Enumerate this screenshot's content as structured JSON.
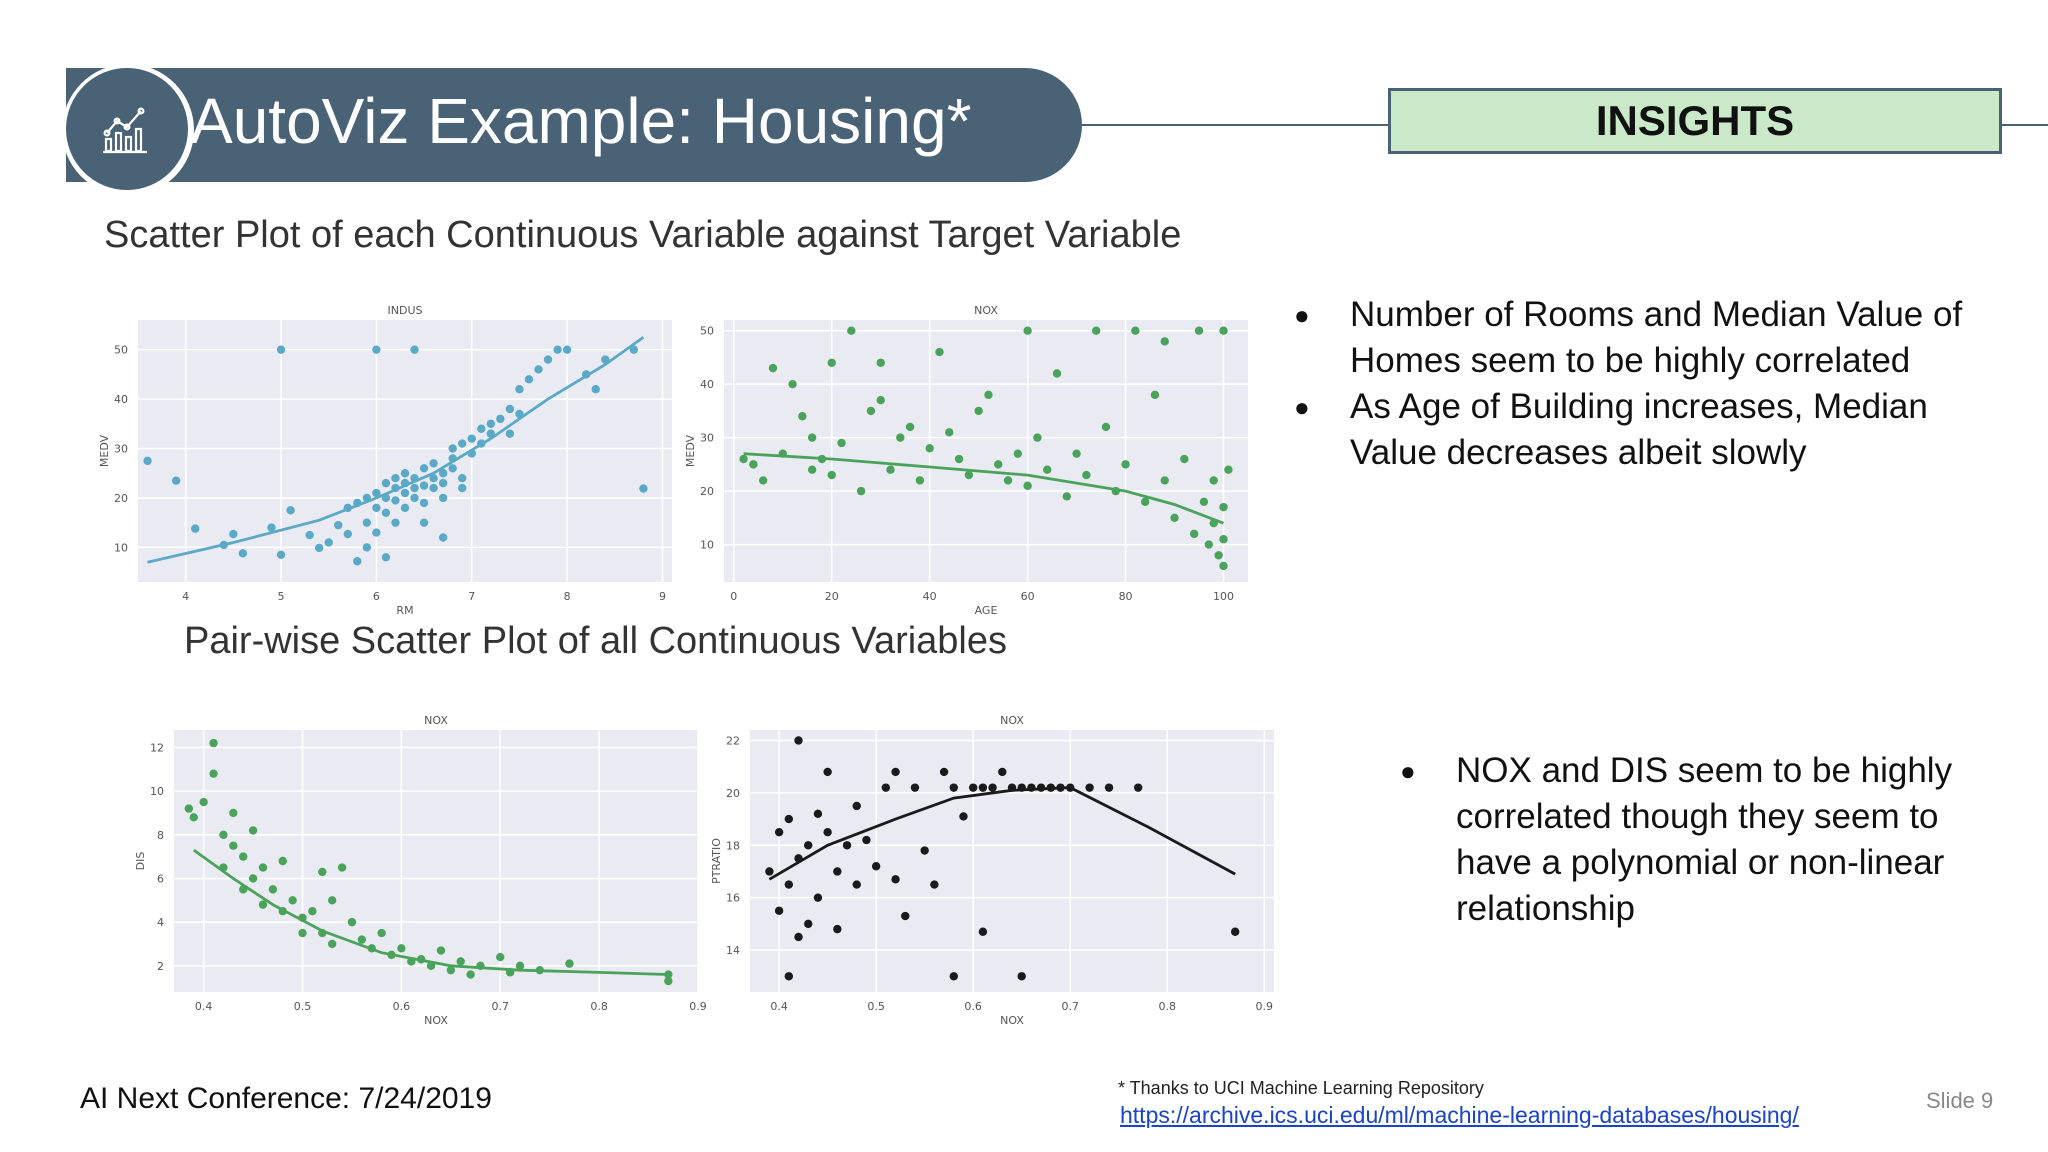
{
  "header": {
    "title": "AutoViz Example: Housing*",
    "insights_label": "INSIGHTS"
  },
  "sections": {
    "scatter_title": "Scatter Plot of each Continuous Variable against Target Variable",
    "pairwise_title": "Pair-wise Scatter Plot of all Continuous Variables"
  },
  "insights": {
    "top": [
      "Number of Rooms and Median Value of Homes seem to be highly correlated",
      "As Age of Building increases, Median Value decreases albeit slowly"
    ],
    "bottom": [
      "NOX and DIS seem to be highly correlated though they seem to have a polynomial or non-linear relationship"
    ]
  },
  "footer": {
    "conference": "AI Next Conference: 7/24/2019",
    "footnote": "*    Thanks to UCI Machine Learning Repository",
    "link": "https://archive.ics.uci.edu/ml/machine-learning-databases/housing/",
    "slide": "Slide 9"
  },
  "chart_data": [
    {
      "type": "scatter",
      "title": "INDUS",
      "xlabel": "RM",
      "ylabel": "MEDV",
      "xlim": [
        3.5,
        9.1
      ],
      "ylim": [
        3,
        56
      ],
      "xticks": [
        4,
        5,
        6,
        7,
        8,
        9
      ],
      "yticks": [
        10,
        20,
        30,
        40,
        50
      ],
      "grid": true,
      "color": "#5aa9c6",
      "points": [
        [
          3.6,
          27.5
        ],
        [
          3.9,
          23.5
        ],
        [
          4.1,
          13.8
        ],
        [
          4.4,
          10.5
        ],
        [
          4.5,
          12.7
        ],
        [
          4.6,
          8.8
        ],
        [
          4.9,
          14.0
        ],
        [
          5.0,
          50
        ],
        [
          5.0,
          8.5
        ],
        [
          5.1,
          17.5
        ],
        [
          5.3,
          12.5
        ],
        [
          5.4,
          9.9
        ],
        [
          5.5,
          11.0
        ],
        [
          5.6,
          14.5
        ],
        [
          5.7,
          18.0
        ],
        [
          5.7,
          12.7
        ],
        [
          5.8,
          7.2
        ],
        [
          5.8,
          19.0
        ],
        [
          5.9,
          20.0
        ],
        [
          5.9,
          15.0
        ],
        [
          5.9,
          10.0
        ],
        [
          6.0,
          21.0
        ],
        [
          6.0,
          18.0
        ],
        [
          6.0,
          13.0
        ],
        [
          6.0,
          50
        ],
        [
          6.1,
          23.0
        ],
        [
          6.1,
          20.0
        ],
        [
          6.1,
          17.0
        ],
        [
          6.1,
          8.0
        ],
        [
          6.2,
          22.0
        ],
        [
          6.2,
          19.5
        ],
        [
          6.2,
          15.0
        ],
        [
          6.2,
          24.0
        ],
        [
          6.3,
          23.0
        ],
        [
          6.3,
          21.0
        ],
        [
          6.3,
          18.0
        ],
        [
          6.3,
          25.0
        ],
        [
          6.4,
          24.0
        ],
        [
          6.4,
          22.0
        ],
        [
          6.4,
          20.0
        ],
        [
          6.4,
          50
        ],
        [
          6.5,
          22.5
        ],
        [
          6.5,
          26.0
        ],
        [
          6.5,
          19.0
        ],
        [
          6.5,
          15.0
        ],
        [
          6.6,
          24.0
        ],
        [
          6.6,
          22.0
        ],
        [
          6.6,
          27.0
        ],
        [
          6.7,
          25.0
        ],
        [
          6.7,
          23.0
        ],
        [
          6.7,
          20.0
        ],
        [
          6.7,
          12.0
        ],
        [
          6.8,
          28.0
        ],
        [
          6.8,
          30.0
        ],
        [
          6.8,
          26.0
        ],
        [
          6.9,
          31.0
        ],
        [
          6.9,
          24.0
        ],
        [
          6.9,
          22.0
        ],
        [
          7.0,
          32.0
        ],
        [
          7.0,
          29.0
        ],
        [
          7.1,
          34.0
        ],
        [
          7.1,
          31.0
        ],
        [
          7.2,
          33.0
        ],
        [
          7.2,
          35.0
        ],
        [
          7.3,
          36.0
        ],
        [
          7.4,
          38.0
        ],
        [
          7.4,
          33.0
        ],
        [
          7.5,
          42.0
        ],
        [
          7.5,
          37.0
        ],
        [
          7.6,
          44.0
        ],
        [
          7.7,
          46.0
        ],
        [
          7.8,
          48.0
        ],
        [
          7.9,
          50
        ],
        [
          8.0,
          50
        ],
        [
          8.2,
          45.0
        ],
        [
          8.3,
          42.0
        ],
        [
          8.4,
          48.0
        ],
        [
          8.7,
          50
        ],
        [
          8.8,
          21.9
        ]
      ],
      "trend": [
        [
          3.6,
          7.0
        ],
        [
          4.5,
          11.0
        ],
        [
          5.4,
          15.5
        ],
        [
          6.0,
          20.0
        ],
        [
          6.6,
          25.0
        ],
        [
          7.2,
          32.0
        ],
        [
          7.8,
          40.0
        ],
        [
          8.4,
          47.0
        ],
        [
          8.8,
          52.5
        ]
      ]
    },
    {
      "type": "scatter",
      "title": "NOX",
      "xlabel": "AGE",
      "ylabel": "MEDV",
      "xlim": [
        -2,
        105
      ],
      "ylim": [
        3,
        52
      ],
      "xticks": [
        0,
        20,
        40,
        60,
        80,
        100
      ],
      "yticks": [
        10,
        20,
        30,
        40,
        50
      ],
      "grid": true,
      "color": "#4aa35a",
      "points": [
        [
          2,
          26
        ],
        [
          4,
          25
        ],
        [
          6,
          22
        ],
        [
          8,
          43
        ],
        [
          10,
          27
        ],
        [
          12,
          40
        ],
        [
          14,
          34
        ],
        [
          16,
          30
        ],
        [
          16,
          24
        ],
        [
          18,
          26
        ],
        [
          20,
          44
        ],
        [
          20,
          23
        ],
        [
          22,
          29
        ],
        [
          24,
          50
        ],
        [
          26,
          20
        ],
        [
          28,
          35
        ],
        [
          30,
          37
        ],
        [
          30,
          44
        ],
        [
          32,
          24
        ],
        [
          34,
          30
        ],
        [
          36,
          32
        ],
        [
          38,
          22
        ],
        [
          40,
          28
        ],
        [
          42,
          46
        ],
        [
          44,
          31
        ],
        [
          46,
          26
        ],
        [
          48,
          23
        ],
        [
          50,
          35
        ],
        [
          52,
          38
        ],
        [
          54,
          25
        ],
        [
          56,
          22
        ],
        [
          58,
          27
        ],
        [
          60,
          21
        ],
        [
          60,
          50
        ],
        [
          62,
          30
        ],
        [
          64,
          24
        ],
        [
          66,
          42
        ],
        [
          68,
          19
        ],
        [
          70,
          27
        ],
        [
          72,
          23
        ],
        [
          74,
          50
        ],
        [
          76,
          32
        ],
        [
          78,
          20
        ],
        [
          80,
          25
        ],
        [
          82,
          50
        ],
        [
          84,
          18
        ],
        [
          86,
          38
        ],
        [
          88,
          22
        ],
        [
          88,
          48
        ],
        [
          90,
          15
        ],
        [
          92,
          26
        ],
        [
          94,
          12
        ],
        [
          95,
          50
        ],
        [
          96,
          18
        ],
        [
          97,
          10
        ],
        [
          98,
          22
        ],
        [
          98,
          14
        ],
        [
          99,
          8
        ],
        [
          100,
          17
        ],
        [
          100,
          11
        ],
        [
          100,
          50
        ],
        [
          100,
          6
        ],
        [
          101,
          24
        ]
      ],
      "trend": [
        [
          2,
          27
        ],
        [
          20,
          26
        ],
        [
          40,
          24.5
        ],
        [
          60,
          23
        ],
        [
          80,
          20
        ],
        [
          90,
          17.5
        ],
        [
          100,
          14
        ]
      ]
    },
    {
      "type": "scatter",
      "title": "NOX",
      "xlabel": "NOX",
      "ylabel": "DIS",
      "xlim": [
        0.37,
        0.9
      ],
      "ylim": [
        0.8,
        12.8
      ],
      "xticks": [
        0.4,
        0.5,
        0.6,
        0.7,
        0.8,
        0.9
      ],
      "yticks": [
        2,
        4,
        6,
        8,
        10,
        12
      ],
      "grid": true,
      "color": "#4aa35a",
      "points": [
        [
          0.385,
          9.2
        ],
        [
          0.39,
          8.8
        ],
        [
          0.4,
          9.5
        ],
        [
          0.41,
          12.2
        ],
        [
          0.41,
          10.8
        ],
        [
          0.42,
          8.0
        ],
        [
          0.42,
          6.5
        ],
        [
          0.43,
          7.5
        ],
        [
          0.43,
          9.0
        ],
        [
          0.44,
          5.5
        ],
        [
          0.44,
          7.0
        ],
        [
          0.45,
          6.0
        ],
        [
          0.45,
          8.2
        ],
        [
          0.46,
          4.8
        ],
        [
          0.46,
          6.5
        ],
        [
          0.47,
          5.5
        ],
        [
          0.48,
          4.5
        ],
        [
          0.48,
          6.8
        ],
        [
          0.49,
          5.0
        ],
        [
          0.5,
          4.2
        ],
        [
          0.5,
          3.5
        ],
        [
          0.51,
          4.5
        ],
        [
          0.52,
          6.3
        ],
        [
          0.52,
          3.5
        ],
        [
          0.53,
          5.0
        ],
        [
          0.53,
          3.0
        ],
        [
          0.54,
          6.5
        ],
        [
          0.55,
          4.0
        ],
        [
          0.56,
          3.2
        ],
        [
          0.57,
          2.8
        ],
        [
          0.58,
          3.5
        ],
        [
          0.59,
          2.5
        ],
        [
          0.6,
          2.8
        ],
        [
          0.61,
          2.2
        ],
        [
          0.62,
          2.3
        ],
        [
          0.63,
          2.0
        ],
        [
          0.64,
          2.7
        ],
        [
          0.65,
          1.8
        ],
        [
          0.66,
          2.2
        ],
        [
          0.67,
          1.6
        ],
        [
          0.68,
          2.0
        ],
        [
          0.7,
          2.4
        ],
        [
          0.71,
          1.7
        ],
        [
          0.72,
          2.0
        ],
        [
          0.74,
          1.8
        ],
        [
          0.77,
          2.1
        ],
        [
          0.87,
          1.6
        ],
        [
          0.87,
          1.3
        ]
      ],
      "trend": [
        [
          0.39,
          7.3
        ],
        [
          0.43,
          6.0
        ],
        [
          0.47,
          4.8
        ],
        [
          0.52,
          3.6
        ],
        [
          0.58,
          2.6
        ],
        [
          0.65,
          2.0
        ],
        [
          0.72,
          1.8
        ],
        [
          0.8,
          1.7
        ],
        [
          0.87,
          1.6
        ]
      ]
    },
    {
      "type": "scatter",
      "title": "NOX",
      "xlabel": "NOX",
      "ylabel": "PTRATIO",
      "xlim": [
        0.37,
        0.91
      ],
      "ylim": [
        12.4,
        22.4
      ],
      "xticks": [
        0.4,
        0.5,
        0.6,
        0.7,
        0.8,
        0.9
      ],
      "yticks": [
        14,
        16,
        18,
        20,
        22
      ],
      "grid": true,
      "color": "#1a1a1a",
      "points": [
        [
          0.39,
          17.0
        ],
        [
          0.4,
          15.5
        ],
        [
          0.4,
          18.5
        ],
        [
          0.41,
          13.0
        ],
        [
          0.41,
          16.5
        ],
        [
          0.41,
          19.0
        ],
        [
          0.42,
          22.0
        ],
        [
          0.42,
          17.5
        ],
        [
          0.42,
          14.5
        ],
        [
          0.43,
          18.0
        ],
        [
          0.43,
          15.0
        ],
        [
          0.44,
          19.2
        ],
        [
          0.44,
          16.0
        ],
        [
          0.45,
          18.5
        ],
        [
          0.45,
          20.8
        ],
        [
          0.46,
          17.0
        ],
        [
          0.46,
          14.8
        ],
        [
          0.47,
          18.0
        ],
        [
          0.48,
          19.5
        ],
        [
          0.48,
          16.5
        ],
        [
          0.49,
          18.2
        ],
        [
          0.5,
          17.2
        ],
        [
          0.51,
          20.2
        ],
        [
          0.52,
          20.8
        ],
        [
          0.52,
          16.7
        ],
        [
          0.53,
          15.3
        ],
        [
          0.54,
          20.2
        ],
        [
          0.55,
          17.8
        ],
        [
          0.56,
          16.5
        ],
        [
          0.57,
          20.8
        ],
        [
          0.58,
          20.2
        ],
        [
          0.58,
          13.0
        ],
        [
          0.59,
          19.1
        ],
        [
          0.6,
          20.2
        ],
        [
          0.61,
          20.2
        ],
        [
          0.61,
          14.7
        ],
        [
          0.62,
          20.2
        ],
        [
          0.63,
          20.8
        ],
        [
          0.64,
          20.2
        ],
        [
          0.65,
          20.2
        ],
        [
          0.65,
          13.0
        ],
        [
          0.66,
          20.2
        ],
        [
          0.67,
          20.2
        ],
        [
          0.68,
          20.2
        ],
        [
          0.69,
          20.2
        ],
        [
          0.7,
          20.2
        ],
        [
          0.72,
          20.2
        ],
        [
          0.74,
          20.2
        ],
        [
          0.77,
          20.2
        ],
        [
          0.87,
          14.7
        ]
      ],
      "trend": [
        [
          0.39,
          16.7
        ],
        [
          0.45,
          18.0
        ],
        [
          0.52,
          19.0
        ],
        [
          0.58,
          19.8
        ],
        [
          0.64,
          20.1
        ],
        [
          0.7,
          20.2
        ],
        [
          0.78,
          18.7
        ],
        [
          0.87,
          16.9
        ]
      ]
    }
  ]
}
